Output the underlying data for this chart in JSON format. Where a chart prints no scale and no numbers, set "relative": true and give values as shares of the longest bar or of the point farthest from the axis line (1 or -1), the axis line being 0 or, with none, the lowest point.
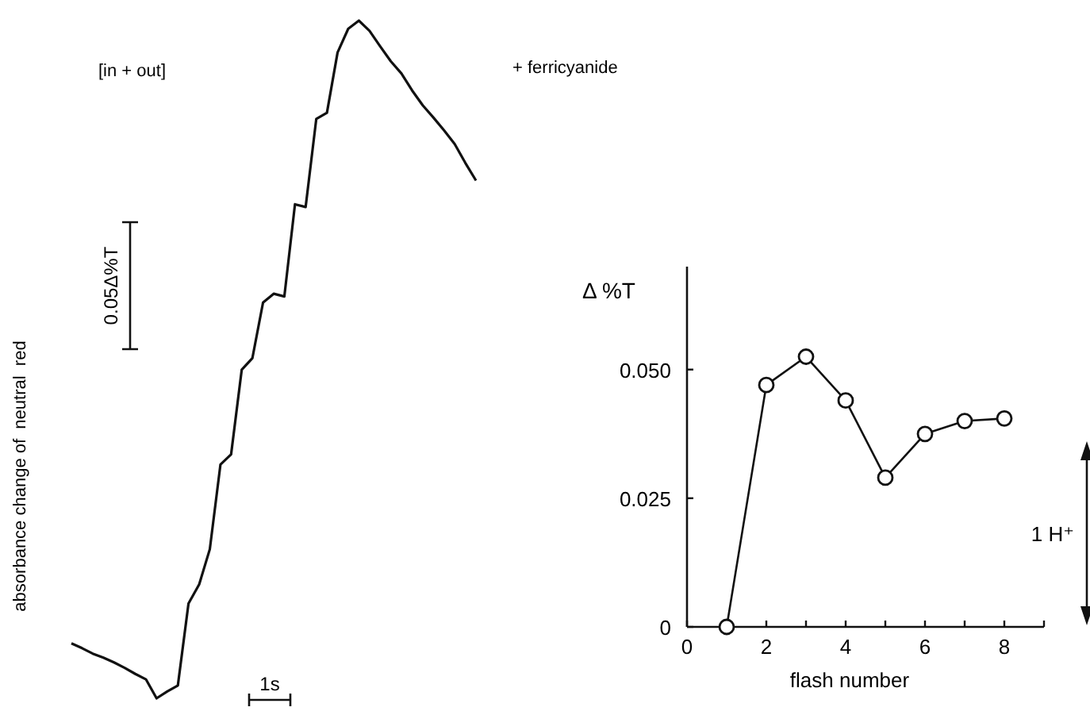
{
  "chart_data": [
    {
      "type": "line",
      "relative": true,
      "ylabel": "absorbance change of  neutral  red",
      "annotations": [
        "[in + out]",
        "+ ferricyanide",
        "0.05Δ%T",
        "1s"
      ],
      "categories": [
        null,
        null,
        null,
        null,
        null,
        null,
        null,
        null,
        null,
        null,
        null,
        null,
        null,
        null,
        null,
        null,
        null,
        null,
        null,
        null,
        null,
        null,
        null,
        null,
        null,
        null,
        null,
        null,
        null,
        null,
        null,
        null,
        null,
        null,
        null,
        null,
        null,
        null,
        null
      ],
      "series": [
        {
          "color": "#111111",
          "values": [
            0.081,
            0.074,
            0.066,
            0.06,
            0.053,
            0.045,
            0.036,
            0.028,
            0,
            0.01,
            0.019,
            0.14,
            0.168,
            0.22,
            0.345,
            0.36,
            0.485,
            0.502,
            0.584,
            0.597,
            0.593,
            0.729,
            0.725,
            0.855,
            0.864,
            0.953,
            0.988,
            1,
            0.985,
            0.962,
            0.94,
            0.922,
            0.897,
            0.875,
            0.857,
            0.838,
            0.818,
            0.79,
            0.764
          ]
        }
      ]
    },
    {
      "type": "line",
      "xlabel": "flash number",
      "ylabel": "Δ %T",
      "annotations": [
        "1 H⁺"
      ],
      "marker": "circle",
      "xlim": [
        0,
        9
      ],
      "ylim": [
        0,
        0.07
      ],
      "xticks": [
        0,
        {
          "value": 1,
          "label": null
        },
        2,
        {
          "value": 3,
          "label": null
        },
        4,
        {
          "value": 5,
          "label": null
        },
        6,
        {
          "value": 7,
          "label": null
        },
        8,
        {
          "value": 9,
          "label": null
        }
      ],
      "yticks": [
        0,
        0.025,
        {
          "value": 0.05,
          "label": "0.050"
        }
      ],
      "series": [
        {
          "color": "#111111",
          "x": [
            1,
            2,
            3,
            4,
            5,
            6,
            7,
            8
          ],
          "values": [
            0,
            0.047,
            0.0525,
            0.044,
            0.029,
            0.0375,
            0.04,
            0.0405
          ]
        }
      ]
    }
  ]
}
